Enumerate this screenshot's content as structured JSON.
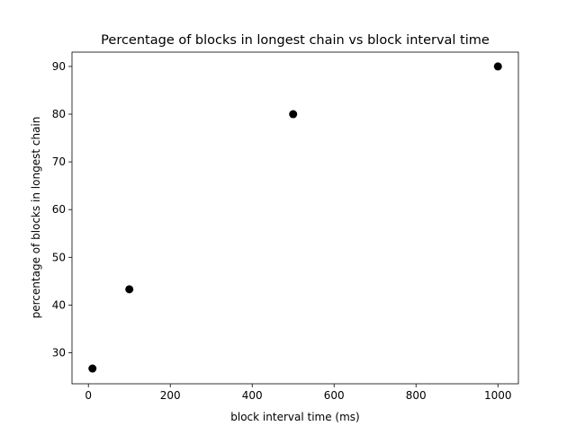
{
  "chart_data": {
    "type": "scatter",
    "title": "Percentage of blocks in longest chain vs block interval time",
    "xlabel": "block interval time (ms)",
    "ylabel": "percentage of blocks in longest chain",
    "xlim": [
      -40,
      1050
    ],
    "ylim": [
      23.5,
      93
    ],
    "x_ticks": [
      0,
      200,
      400,
      600,
      800,
      1000
    ],
    "y_ticks": [
      30,
      40,
      50,
      60,
      70,
      80,
      90
    ],
    "grid": false,
    "legend": "none",
    "marker_color": "#000000",
    "series": [
      {
        "points": [
          {
            "x": 10,
            "y": 26.7
          },
          {
            "x": 100,
            "y": 43.3
          },
          {
            "x": 500,
            "y": 80
          },
          {
            "x": 1000,
            "y": 90
          }
        ]
      }
    ]
  }
}
